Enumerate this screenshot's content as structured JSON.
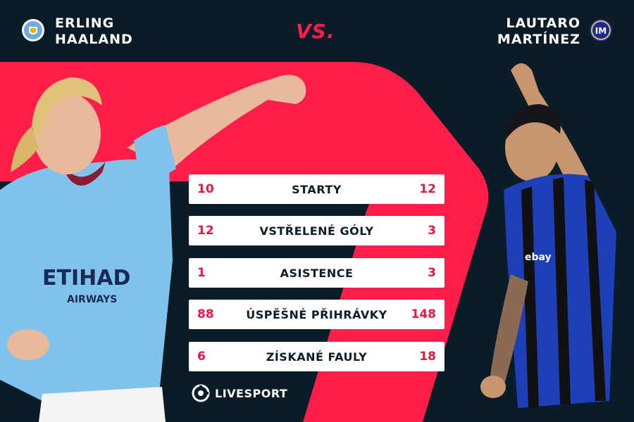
{
  "header": {
    "left_player_first": "ERLING",
    "left_player_last": "HAALAND",
    "right_player_first": "LAUTARO",
    "right_player_last": "MARTÍNEZ",
    "vs_label": "VS."
  },
  "stats": [
    {
      "left": "10",
      "label": "STARTY",
      "right": "12"
    },
    {
      "left": "12",
      "label": "VSTŘELENÉ GÓLY",
      "right": "3"
    },
    {
      "left": "1",
      "label": "ASISTENCE",
      "right": "3"
    },
    {
      "left": "88",
      "label": "ÚSPĚŠNÉ PŘIHRÁVKY",
      "right": "148"
    },
    {
      "left": "6",
      "label": "ZÍSKANÉ FAULY",
      "right": "18"
    }
  ],
  "brand": {
    "name": "LIVESPORT"
  },
  "colors": {
    "background": "#0a1c28",
    "accent": "#ff1e4a",
    "stat_value": "#e8173f",
    "man_city_blue": "#7fc3ec",
    "inter_blue": "#1d3fb8"
  },
  "icons": {
    "left_crest": "manchester-city-crest-icon",
    "right_crest": "inter-milan-crest-icon",
    "brand_logo": "livesport-logo-icon"
  }
}
